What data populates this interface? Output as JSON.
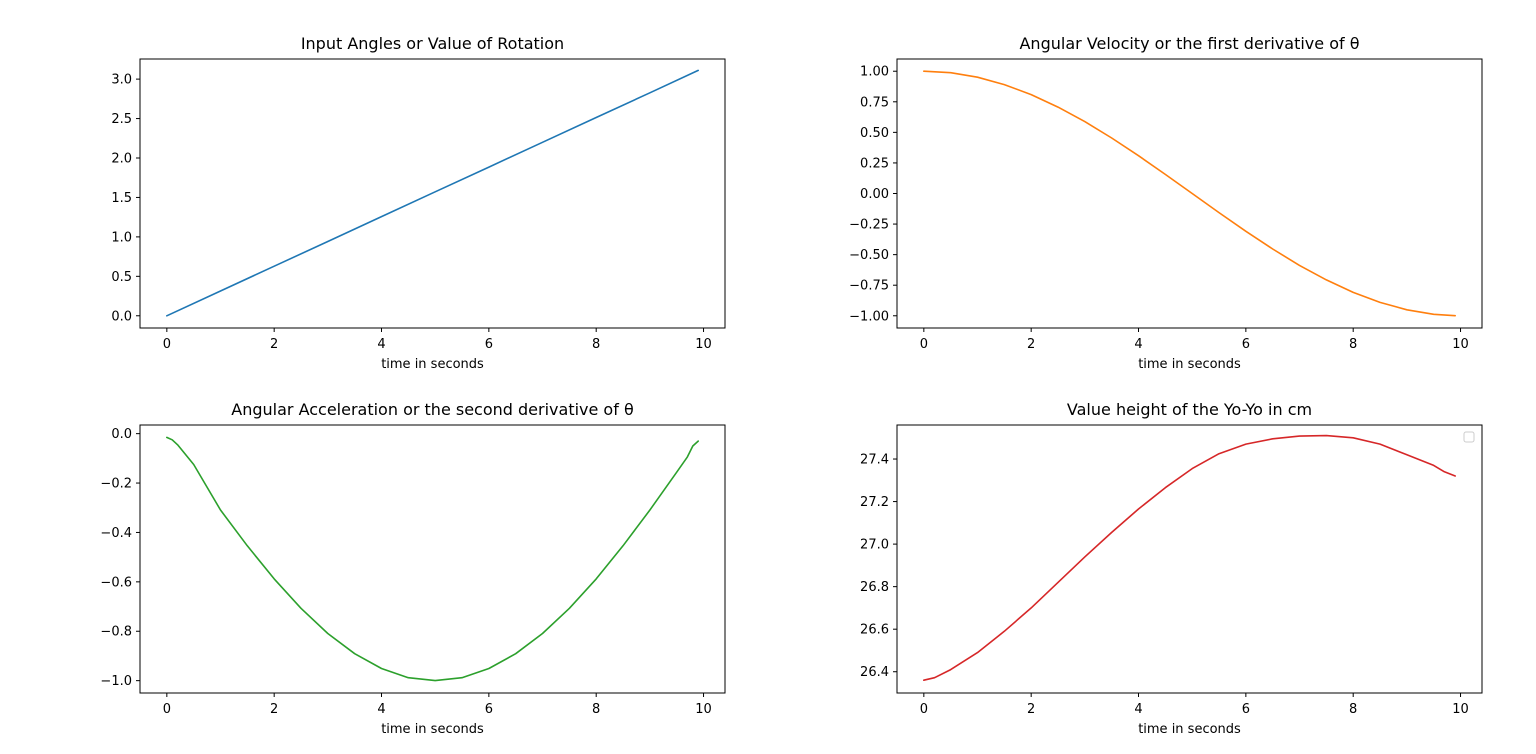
{
  "chart_data": [
    {
      "type": "line",
      "title": "Input Angles or Value of Rotation",
      "xlabel": "time in seconds",
      "ylabel": "",
      "xlim": [
        -0.5,
        10.4
      ],
      "ylim": [
        -0.155,
        3.255
      ],
      "xticks": [
        0,
        2,
        4,
        6,
        8,
        10
      ],
      "xtick_labels": [
        "0",
        "2",
        "4",
        "6",
        "8",
        "10"
      ],
      "yticks": [
        0.0,
        0.5,
        1.0,
        1.5,
        2.0,
        2.5,
        3.0
      ],
      "ytick_labels": [
        "0.0",
        "0.5",
        "1.0",
        "1.5",
        "2.0",
        "2.5",
        "3.0"
      ],
      "grid": false,
      "series": [
        {
          "color": "#1f77b4",
          "x": [
            0,
            1,
            2,
            3,
            4,
            5,
            6,
            7,
            8,
            9,
            9.9
          ],
          "y": [
            0.0,
            0.314,
            0.628,
            0.942,
            1.257,
            1.571,
            1.885,
            2.199,
            2.513,
            2.827,
            3.11
          ]
        }
      ]
    },
    {
      "type": "line",
      "title": "Angular Velocity or the first derivative of θ",
      "xlabel": "time in seconds",
      "ylabel": "",
      "xlim": [
        -0.5,
        10.4
      ],
      "ylim": [
        -1.1,
        1.1
      ],
      "xticks": [
        0,
        2,
        4,
        6,
        8,
        10
      ],
      "xtick_labels": [
        "0",
        "2",
        "4",
        "6",
        "8",
        "10"
      ],
      "yticks": [
        -1.0,
        -0.75,
        -0.5,
        -0.25,
        0.0,
        0.25,
        0.5,
        0.75,
        1.0
      ],
      "ytick_labels": [
        "−1.00",
        "−0.75",
        "−0.50",
        "−0.25",
        "0.00",
        "0.25",
        "0.50",
        "0.75",
        "1.00"
      ],
      "grid": false,
      "series": [
        {
          "color": "#ff7f0e",
          "x": [
            0,
            0.5,
            1,
            1.5,
            2,
            2.5,
            3,
            3.5,
            4,
            4.5,
            5,
            5.5,
            6,
            6.5,
            7,
            7.5,
            8,
            8.5,
            9,
            9.5,
            9.9
          ],
          "y": [
            1.0,
            0.988,
            0.951,
            0.891,
            0.809,
            0.707,
            0.588,
            0.454,
            0.309,
            0.156,
            0.0,
            -0.156,
            -0.309,
            -0.454,
            -0.588,
            -0.707,
            -0.809,
            -0.891,
            -0.951,
            -0.988,
            -0.999
          ]
        }
      ]
    },
    {
      "type": "line",
      "title": "Angular Acceleration or the second derivative of θ",
      "xlabel": "time in seconds",
      "ylabel": "",
      "xlim": [
        -0.5,
        10.4
      ],
      "ylim": [
        -1.05,
        0.035
      ],
      "xticks": [
        0,
        2,
        4,
        6,
        8,
        10
      ],
      "xtick_labels": [
        "0",
        "2",
        "4",
        "6",
        "8",
        "10"
      ],
      "yticks": [
        -1.0,
        -0.8,
        -0.6,
        -0.4,
        -0.2,
        0.0
      ],
      "ytick_labels": [
        "−1.0",
        "−0.8",
        "−0.6",
        "−0.4",
        "−0.2",
        "0.0"
      ],
      "grid": false,
      "series": [
        {
          "color": "#2ca02c",
          "x": [
            0,
            0.1,
            0.2,
            0.5,
            1,
            1.5,
            2,
            2.5,
            3,
            3.5,
            4,
            4.5,
            5,
            5.5,
            6,
            6.5,
            7,
            7.5,
            8,
            8.5,
            9,
            9.5,
            9.7,
            9.8,
            9.9
          ],
          "y": [
            -0.015,
            -0.025,
            -0.045,
            -0.125,
            -0.309,
            -0.454,
            -0.588,
            -0.707,
            -0.809,
            -0.891,
            -0.951,
            -0.988,
            -1.0,
            -0.988,
            -0.951,
            -0.891,
            -0.809,
            -0.707,
            -0.588,
            -0.454,
            -0.309,
            -0.156,
            -0.094,
            -0.05,
            -0.03
          ]
        }
      ]
    },
    {
      "type": "line",
      "title": "Value height of the Yo-Yo in cm",
      "xlabel": "time in seconds",
      "ylabel": "",
      "xlim": [
        -0.5,
        10.4
      ],
      "ylim": [
        26.3,
        27.56
      ],
      "xticks": [
        0,
        2,
        4,
        6,
        8,
        10
      ],
      "xtick_labels": [
        "0",
        "2",
        "4",
        "6",
        "8",
        "10"
      ],
      "yticks": [
        26.4,
        26.6,
        26.8,
        27.0,
        27.2,
        27.4
      ],
      "ytick_labels": [
        "26.4",
        "26.6",
        "26.8",
        "27.0",
        "27.2",
        "27.4"
      ],
      "grid": false,
      "legend": "top-right, empty",
      "series": [
        {
          "color": "#d62728",
          "x": [
            0,
            0.2,
            0.5,
            1,
            1.5,
            2,
            2.5,
            3,
            3.5,
            4,
            4.5,
            5,
            5.5,
            6,
            6.5,
            7,
            7.5,
            8,
            8.5,
            9,
            9.5,
            9.7,
            9.9
          ],
          "y": [
            26.36,
            26.372,
            26.41,
            26.49,
            26.59,
            26.7,
            26.82,
            26.94,
            27.055,
            27.165,
            27.265,
            27.355,
            27.425,
            27.47,
            27.495,
            27.508,
            27.51,
            27.5,
            27.47,
            27.42,
            27.37,
            27.34,
            27.32
          ]
        }
      ]
    }
  ]
}
